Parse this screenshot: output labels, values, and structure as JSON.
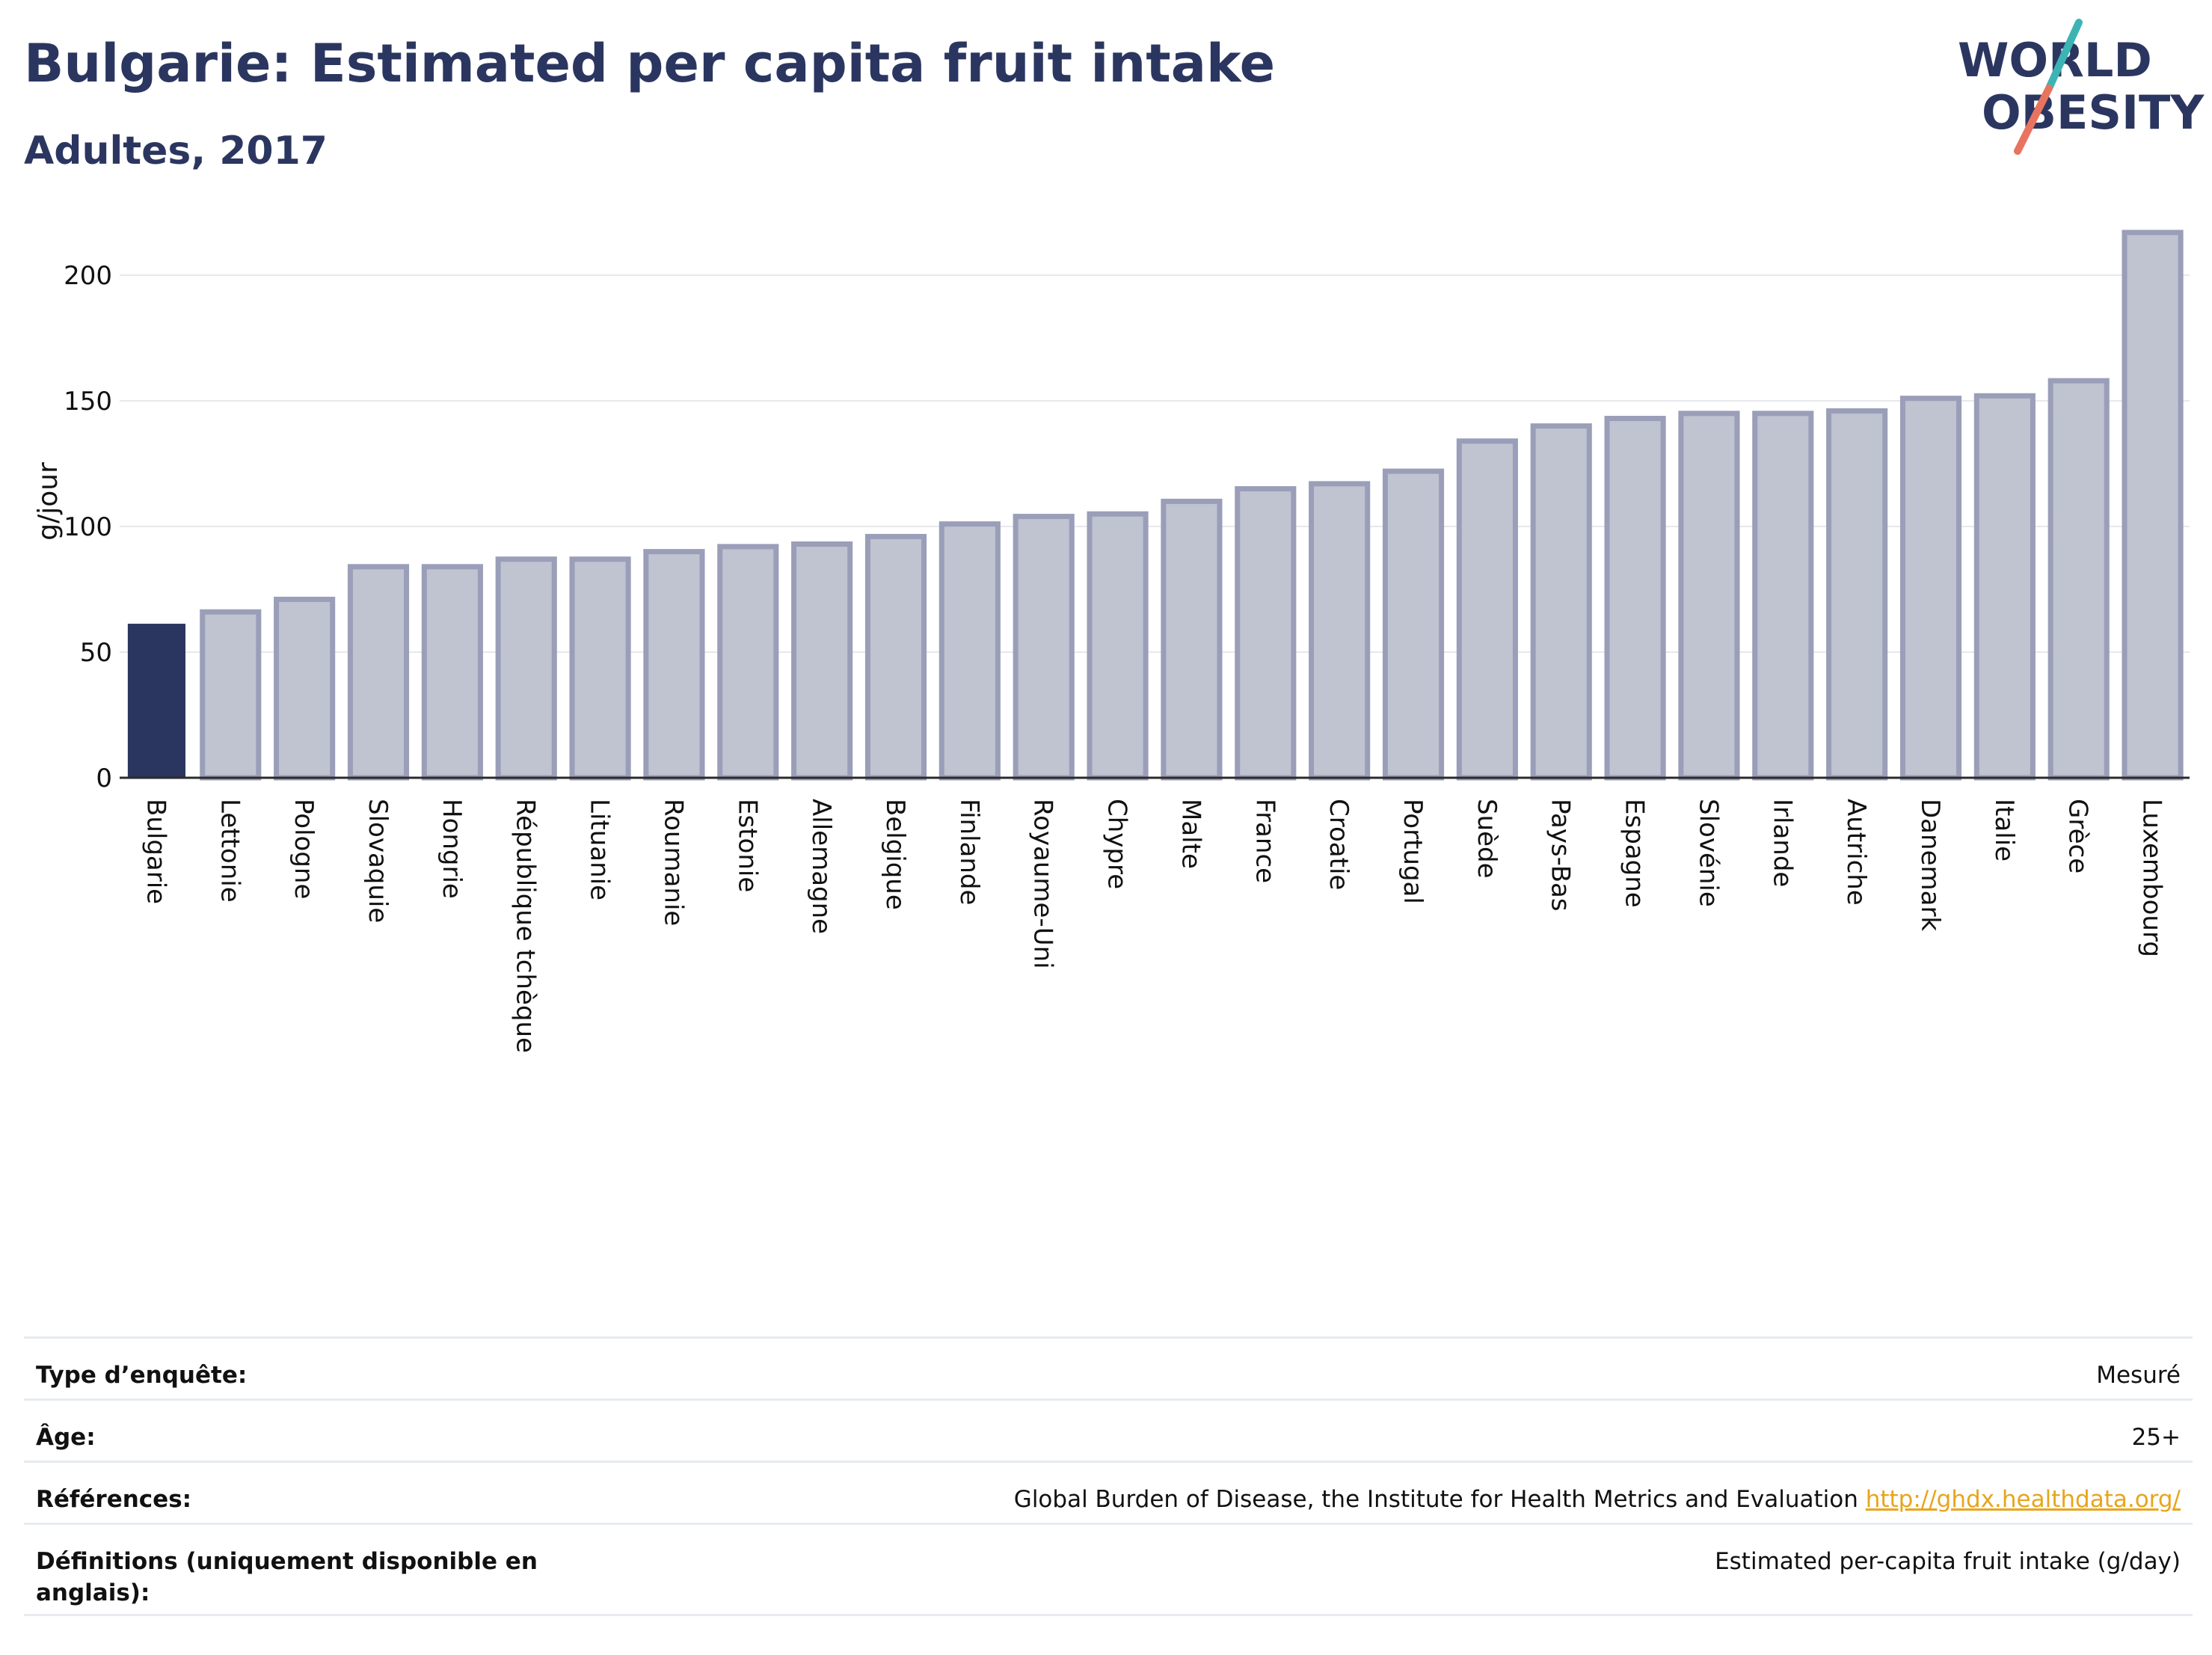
{
  "header": {
    "title": "Bulgarie: Estimated per capita fruit intake",
    "subtitle": "Adultes, 2017"
  },
  "logo": {
    "line1": "WORLD",
    "line2": "OBESITY"
  },
  "colors": {
    "highlight": "#2b3660",
    "bar_fill": "#c0c3d0",
    "bar_stroke": "#9a9eb8",
    "text": "#2b3660",
    "link": "#e7a51d",
    "logo_teal": "#3cb4b4",
    "logo_coral": "#e8735f"
  },
  "chart_data": {
    "type": "bar",
    "ylabel": "g/jour",
    "ylim": [
      0,
      220
    ],
    "yticks": [
      0,
      50,
      100,
      150,
      200
    ],
    "grid": true,
    "highlight": "Bulgarie",
    "categories": [
      "Bulgarie",
      "Lettonie",
      "Pologne",
      "Slovaquie",
      "Hongrie",
      "République tchèque",
      "Lituanie",
      "Roumanie",
      "Estonie",
      "Allemagne",
      "Belgique",
      "Finlande",
      "Royaume-Uni",
      "Chypre",
      "Malte",
      "France",
      "Croatie",
      "Portugal",
      "Suède",
      "Pays-Bas",
      "Espagne",
      "Slovénie",
      "Irlande",
      "Autriche",
      "Danemark",
      "Italie",
      "Grèce",
      "Luxembourg"
    ],
    "values": [
      61,
      66,
      71,
      84,
      84,
      87,
      87,
      90,
      92,
      93,
      96,
      101,
      104,
      105,
      110,
      115,
      117,
      122,
      134,
      140,
      143,
      145,
      145,
      146,
      151,
      152,
      158,
      217
    ]
  },
  "info": [
    {
      "label": "Type d’enquête:",
      "value": "Mesuré"
    },
    {
      "label": "Âge:",
      "value": "25+"
    },
    {
      "label": "Références:",
      "value": "Global Burden of Disease, the Institute for Health Metrics and Evaluation",
      "link": "http://ghdx.healthdata.org/"
    },
    {
      "label": "Définitions (uniquement disponible en anglais):",
      "value": "Estimated per-capita fruit intake (g/day)"
    }
  ]
}
